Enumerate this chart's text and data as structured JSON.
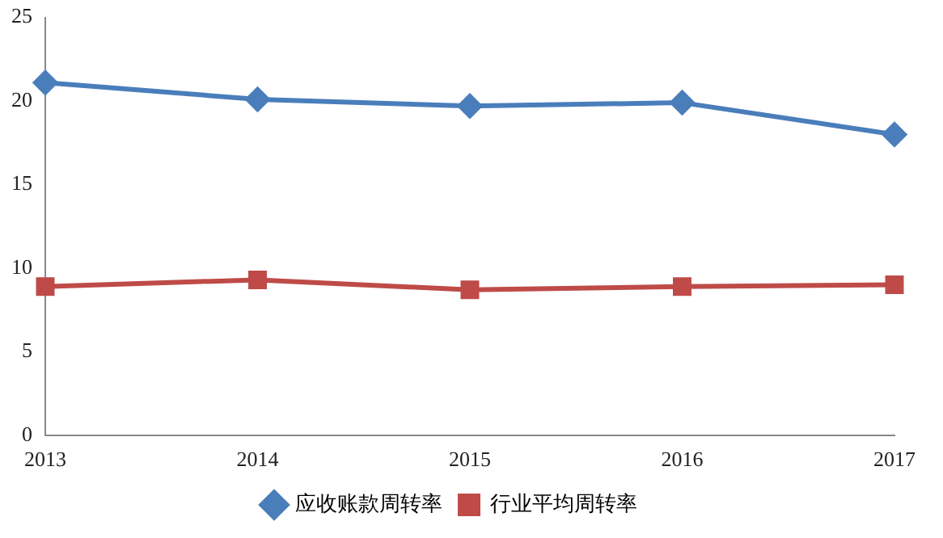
{
  "chart_data": {
    "type": "line",
    "categories": [
      "2013",
      "2014",
      "2015",
      "2016",
      "2017"
    ],
    "series": [
      {
        "name": "应收账款周转率",
        "color": "#4a7ebb",
        "marker": "diamond",
        "values": [
          21.1,
          20.1,
          19.7,
          19.9,
          18.0
        ]
      },
      {
        "name": "行业平均周转率",
        "color": "#be4b48",
        "marker": "square",
        "values": [
          8.9,
          9.3,
          8.7,
          8.9,
          9.0
        ]
      }
    ],
    "ylim": [
      0,
      25
    ],
    "yticks": [
      0,
      5,
      10,
      15,
      20,
      25
    ],
    "grid": false,
    "legend": "bottom",
    "line_style": "solid"
  }
}
